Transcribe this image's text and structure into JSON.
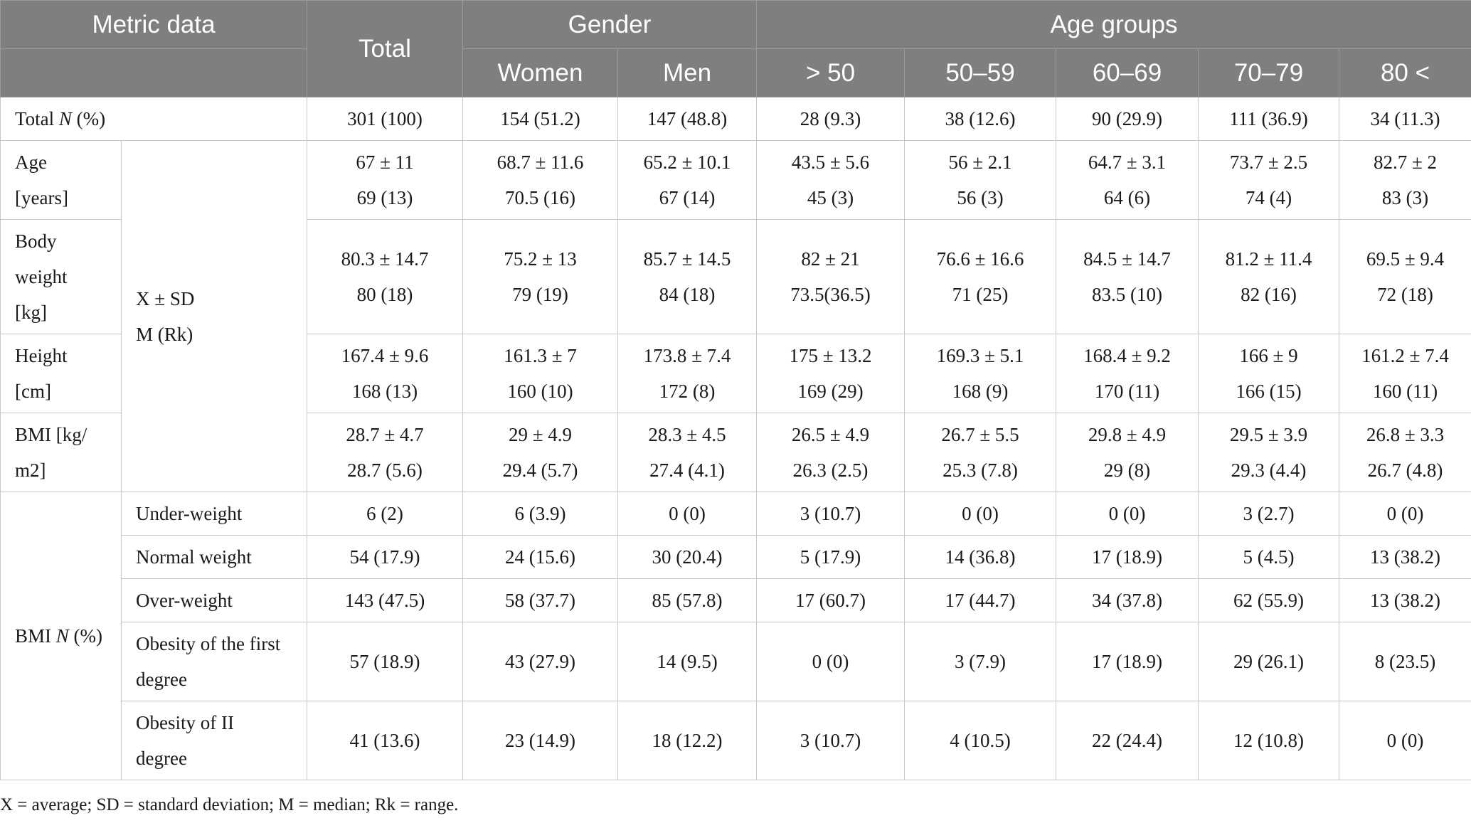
{
  "header": {
    "metric_data": "Metric data",
    "total": "Total",
    "gender": "Gender",
    "age_groups": "Age groups",
    "sub": [
      "Women",
      "Men",
      "> 50",
      "50–59",
      "60–69",
      "70–79",
      "80 <"
    ]
  },
  "rows": {
    "total_n": {
      "label_pre": "Total ",
      "label_italic": "N",
      "label_post": " (%)",
      "values": [
        "301 (100)",
        "154 (51.2)",
        "147 (48.8)",
        "28 (9.3)",
        "38 (12.6)",
        "90 (29.9)",
        "111 (36.9)",
        "34 (11.3)"
      ]
    },
    "stat_label": {
      "line1": "X ± SD",
      "line2": "M (Rk)"
    },
    "age": {
      "label": [
        "Age",
        "[years]"
      ],
      "sd": [
        "67 ± 11",
        "68.7 ± 11.6",
        "65.2 ± 10.1",
        "43.5 ± 5.6",
        "56 ± 2.1",
        "64.7 ± 3.1",
        "73.7 ± 2.5",
        "82.7 ± 2"
      ],
      "med": [
        "69 (13)",
        "70.5 (16)",
        "67 (14)",
        "45 (3)",
        "56 (3)",
        "64 (6)",
        "74 (4)",
        "83 (3)"
      ]
    },
    "body_weight": {
      "label": [
        "Body",
        "weight",
        "[kg]"
      ],
      "sd": [
        "80.3 ± 14.7",
        "75.2 ± 13",
        "85.7 ± 14.5",
        "82 ± 21",
        "76.6 ± 16.6",
        "84.5 ± 14.7",
        "81.2 ± 11.4",
        "69.5 ± 9.4"
      ],
      "med": [
        "80 (18)",
        "79 (19)",
        "84 (18)",
        "73.5(36.5)",
        "71 (25)",
        "83.5 (10)",
        "82 (16)",
        "72 (18)"
      ]
    },
    "height": {
      "label": [
        "Height",
        "[cm]"
      ],
      "sd": [
        "167.4 ± 9.6",
        "161.3 ± 7",
        "173.8 ± 7.4",
        "175 ± 13.2",
        "169.3 ± 5.1",
        "168.4 ± 9.2",
        "166 ± 9",
        "161.2 ± 7.4"
      ],
      "med": [
        "168 (13)",
        "160 (10)",
        "172 (8)",
        "169 (29)",
        "168 (9)",
        "170 (11)",
        "166 (15)",
        "160 (11)"
      ]
    },
    "bmi": {
      "label": [
        "BMI [kg/",
        "m2]"
      ],
      "sd": [
        "28.7 ± 4.7",
        "29 ± 4.9",
        "28.3 ± 4.5",
        "26.5 ± 4.9",
        "26.7 ± 5.5",
        "29.8 ± 4.9",
        "29.5 ± 3.9",
        "26.8 ± 3.3"
      ],
      "med": [
        "28.7 (5.6)",
        "29.4 (5.7)",
        "27.4 (4.1)",
        "26.3 (2.5)",
        "25.3 (7.8)",
        "29 (8)",
        "29.3 (4.4)",
        "26.7 (4.8)"
      ]
    },
    "bmi_n": {
      "label_pre": "BMI ",
      "label_italic": "N",
      "label_post": " (%)",
      "categories": [
        {
          "label": [
            "Under-weight"
          ],
          "values": [
            "6 (2)",
            "6 (3.9)",
            "0 (0)",
            "3 (10.7)",
            "0 (0)",
            "0 (0)",
            "3 (2.7)",
            "0 (0)"
          ]
        },
        {
          "label": [
            "Normal weight"
          ],
          "values": [
            "54 (17.9)",
            "24 (15.6)",
            "30 (20.4)",
            "5 (17.9)",
            "14 (36.8)",
            "17 (18.9)",
            "5 (4.5)",
            "13 (38.2)"
          ]
        },
        {
          "label": [
            "Over-weight"
          ],
          "values": [
            "143 (47.5)",
            "58 (37.7)",
            "85 (57.8)",
            "17 (60.7)",
            "17 (44.7)",
            "34 (37.8)",
            "62 (55.9)",
            "13 (38.2)"
          ]
        },
        {
          "label": [
            "Obesity of the first",
            "degree"
          ],
          "values": [
            "57 (18.9)",
            "43 (27.9)",
            "14 (9.5)",
            "0 (0)",
            "3 (7.9)",
            "17 (18.9)",
            "29 (26.1)",
            "8 (23.5)"
          ]
        },
        {
          "label": [
            "Obesity of II",
            "degree"
          ],
          "values": [
            "41 (13.6)",
            "23 (14.9)",
            "18 (12.2)",
            "3 (10.7)",
            "4 (10.5)",
            "22 (24.4)",
            "12 (10.8)",
            "0 (0)"
          ]
        }
      ]
    }
  },
  "footnote": "X = average; SD = standard deviation; M = median; Rk = range."
}
